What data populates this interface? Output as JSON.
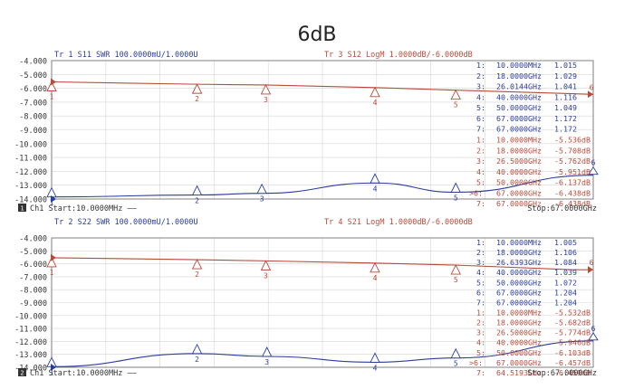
{
  "title": "6dB",
  "panels": [
    {
      "name": "top",
      "trace_a_label": "Tr 1  S11 SWR 100.0000mU/1.0000U",
      "trace_b_label": "Tr 3  S12 LogM 1.0000dB/-6.0000dB",
      "channel_number": "1",
      "start_text": "Ch1 Start:10.0000MHz ——",
      "stop_text": "Stop:67.0000GHz",
      "y_ticks": [
        "-4.000",
        "-5.000",
        "-6.000",
        "-7.000",
        "-8.000",
        "-9.000",
        "-10.000",
        "-11.000",
        "-12.000",
        "-13.000",
        "-14.000"
      ],
      "ylim": [
        -14,
        -4
      ],
      "blue_markers": [
        {
          "n": "1:",
          "freq": "10.0000MHz",
          "val": "1.015"
        },
        {
          "n": "2:",
          "freq": "18.0000GHz",
          "val": "1.029"
        },
        {
          "n": "3:",
          "freq": "26.0144GHz",
          "val": "1.041"
        },
        {
          "n": "4:",
          "freq": "40.0000GHz",
          "val": "1.116"
        },
        {
          "n": "5:",
          "freq": "50.0000GHz",
          "val": "1.049"
        },
        {
          "n": "6:",
          "freq": "67.0000GHz",
          "val": "1.172"
        },
        {
          "n": "7:",
          "freq": "67.0000GHz",
          "val": "1.172"
        }
      ],
      "red_markers": [
        {
          "n": "1:",
          "freq": "10.0000MHz",
          "val": "-5.536dB"
        },
        {
          "n": "2:",
          "freq": "18.0000GHz",
          "val": "-5.708dB"
        },
        {
          "n": "3:",
          "freq": "26.5000GHz",
          "val": "-5.762dB"
        },
        {
          "n": "4:",
          "freq": "40.0000GHz",
          "val": "-5.951dB"
        },
        {
          "n": "5:",
          "freq": "50.0000GHz",
          "val": "-6.137dB"
        },
        {
          "n": ">6:",
          "freq": "67.0000GHz",
          "val": "-6.438dB"
        },
        {
          "n": "7:",
          "freq": "67.0000GHz",
          "val": "-6.438dB"
        }
      ]
    },
    {
      "name": "bottom",
      "trace_a_label": "Tr 2  S22 SWR 100.0000mU/1.0000U",
      "trace_b_label": "Tr 4  S21 LogM 1.0000dB/-6.0000dB",
      "channel_number": "2",
      "start_text": "Ch1 Start:10.0000MHz ——",
      "stop_text": "Stop:67.0000GHz",
      "y_ticks": [
        "-4.000",
        "-5.000",
        "-6.000",
        "-7.000",
        "-8.000",
        "-9.000",
        "-10.000",
        "-11.000",
        "-12.000",
        "-13.000",
        "-14.000"
      ],
      "ylim": [
        -14,
        -4
      ],
      "blue_markers": [
        {
          "n": "1:",
          "freq": "10.0000MHz",
          "val": "1.005"
        },
        {
          "n": "2:",
          "freq": "18.0000GHz",
          "val": "1.106"
        },
        {
          "n": "3:",
          "freq": "26.6393GHz",
          "val": "1.084"
        },
        {
          "n": "4:",
          "freq": "40.0000GHz",
          "val": "1.039"
        },
        {
          "n": "5:",
          "freq": "50.0000GHz",
          "val": "1.072"
        },
        {
          "n": "6:",
          "freq": "67.0000GHz",
          "val": "1.204"
        },
        {
          "n": "7:",
          "freq": "67.0000GHz",
          "val": "1.204"
        }
      ],
      "red_markers": [
        {
          "n": "1:",
          "freq": "10.0000MHz",
          "val": "-5.532dB"
        },
        {
          "n": "2:",
          "freq": "18.0000GHz",
          "val": "-5.682dB"
        },
        {
          "n": "3:",
          "freq": "26.5000GHz",
          "val": "-5.774dB"
        },
        {
          "n": "4:",
          "freq": "40.0000GHz",
          "val": "-5.946dB"
        },
        {
          "n": "5:",
          "freq": "50.0000GHz",
          "val": "-6.103dB"
        },
        {
          "n": ">6:",
          "freq": "67.0000GHz",
          "val": "-6.457dB"
        },
        {
          "n": "7:",
          "freq": "64.5193GHz",
          "val": "-6.459dB"
        }
      ]
    }
  ],
  "chart_data": [
    {
      "type": "line",
      "xlabel": "",
      "ylabel": "",
      "x_range_ghz": [
        0.01,
        67
      ],
      "ylim": [
        -14,
        -4
      ],
      "grid": true,
      "series": [
        {
          "name": "S12 LogM",
          "color": "#b84a3a",
          "x": [
            0.01,
            18,
            26.5,
            40,
            50,
            67
          ],
          "values": [
            -5.536,
            -5.708,
            -5.762,
            -5.951,
            -6.137,
            -6.438
          ]
        },
        {
          "name": "S11 SWR",
          "color": "#2b3d9a",
          "x": [
            0.01,
            18,
            26.0144,
            40,
            50,
            67
          ],
          "values": [
            1.015,
            1.029,
            1.041,
            1.116,
            1.049,
            1.172
          ]
        }
      ]
    },
    {
      "type": "line",
      "xlabel": "",
      "ylabel": "",
      "x_range_ghz": [
        0.01,
        67
      ],
      "ylim": [
        -14,
        -4
      ],
      "grid": true,
      "series": [
        {
          "name": "S21 LogM",
          "color": "#b84a3a",
          "x": [
            0.01,
            18,
            26.5,
            40,
            50,
            64.5193,
            67
          ],
          "values": [
            -5.532,
            -5.682,
            -5.774,
            -5.946,
            -6.103,
            -6.459,
            -6.457
          ]
        },
        {
          "name": "S22 SWR",
          "color": "#2b3d9a",
          "x": [
            0.01,
            18,
            26.6393,
            40,
            50,
            67
          ],
          "values": [
            1.005,
            1.106,
            1.084,
            1.039,
            1.072,
            1.204
          ]
        }
      ]
    }
  ]
}
